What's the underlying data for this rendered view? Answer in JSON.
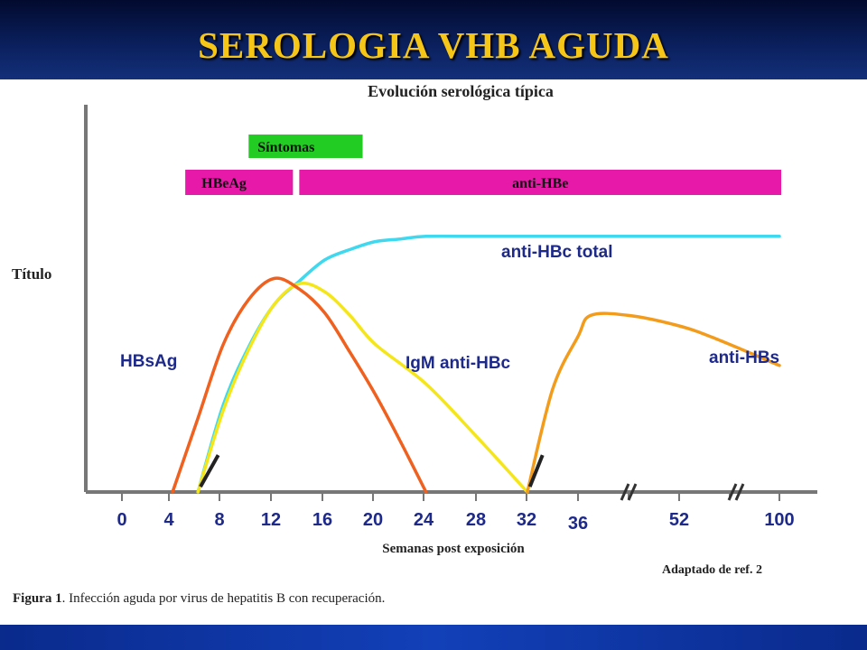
{
  "slide": {
    "title": "SEROLOGIA VHB AGUDA"
  },
  "figure": {
    "subtitle": "Evolución serológica típica",
    "caption_prefix": "Figura 1",
    "caption_text": ". Infección aguda por virus de hepatitis B con recuperación.",
    "source": "Adaptado de ref. 2"
  },
  "chart_data": {
    "type": "line",
    "title": "Evolución serológica típica",
    "xlabel": "Semanas post exposición",
    "ylabel": "Título",
    "x_ticks": [
      "0",
      "4",
      "8",
      "12",
      "16",
      "20",
      "24",
      "28",
      "32",
      "36",
      "52",
      "100"
    ],
    "x_breaks_between": [
      [
        "36",
        "52"
      ],
      [
        "52",
        "100"
      ]
    ],
    "ylim": [
      0,
      100
    ],
    "grid": false,
    "legend": "none (series labeled directly on curves)",
    "bars": [
      {
        "label": "Síntomas",
        "start": 10,
        "end": 19,
        "color": "#22cc22"
      },
      {
        "label": "HBeAg",
        "start": 5,
        "end": 13.5,
        "color": "#e619a8"
      },
      {
        "label": "anti-HBe",
        "start": 14,
        "end": "100",
        "color": "#e619a8"
      }
    ],
    "series": [
      {
        "name": "HBsAg",
        "color": "#f0601e",
        "points": [
          [
            4,
            0
          ],
          [
            6,
            28
          ],
          [
            8,
            56
          ],
          [
            10,
            73
          ],
          [
            12,
            81
          ],
          [
            14,
            77
          ],
          [
            16,
            68
          ],
          [
            18,
            53
          ],
          [
            20,
            37
          ],
          [
            22,
            19
          ],
          [
            24,
            0
          ]
        ]
      },
      {
        "name": "anti-HBc total",
        "color": "#3fd8ee",
        "points": [
          [
            6,
            0
          ],
          [
            8,
            33
          ],
          [
            10,
            55
          ],
          [
            12,
            71
          ],
          [
            14,
            80
          ],
          [
            16,
            88
          ],
          [
            18,
            92
          ],
          [
            20,
            95
          ],
          [
            22,
            96
          ],
          [
            24,
            97
          ],
          [
            28,
            97
          ],
          [
            32,
            97
          ],
          [
            36,
            97
          ],
          [
            52,
            97
          ],
          [
            100,
            97
          ]
        ]
      },
      {
        "name": "IgM anti-HBc",
        "color": "#f5e61a",
        "points": [
          [
            6,
            0
          ],
          [
            8,
            31
          ],
          [
            10,
            54
          ],
          [
            12,
            71
          ],
          [
            14,
            79
          ],
          [
            16,
            76
          ],
          [
            18,
            67
          ],
          [
            20,
            56
          ],
          [
            24,
            41
          ],
          [
            28,
            21
          ],
          [
            32,
            0
          ]
        ]
      },
      {
        "name": "anti-HBs",
        "color": "#f39c1c",
        "points": [
          [
            32,
            0
          ],
          [
            34,
            39
          ],
          [
            36,
            59
          ],
          [
            38,
            67
          ],
          [
            44,
            67
          ],
          [
            52,
            63
          ],
          [
            70,
            58
          ],
          [
            100,
            48
          ]
        ]
      }
    ]
  }
}
